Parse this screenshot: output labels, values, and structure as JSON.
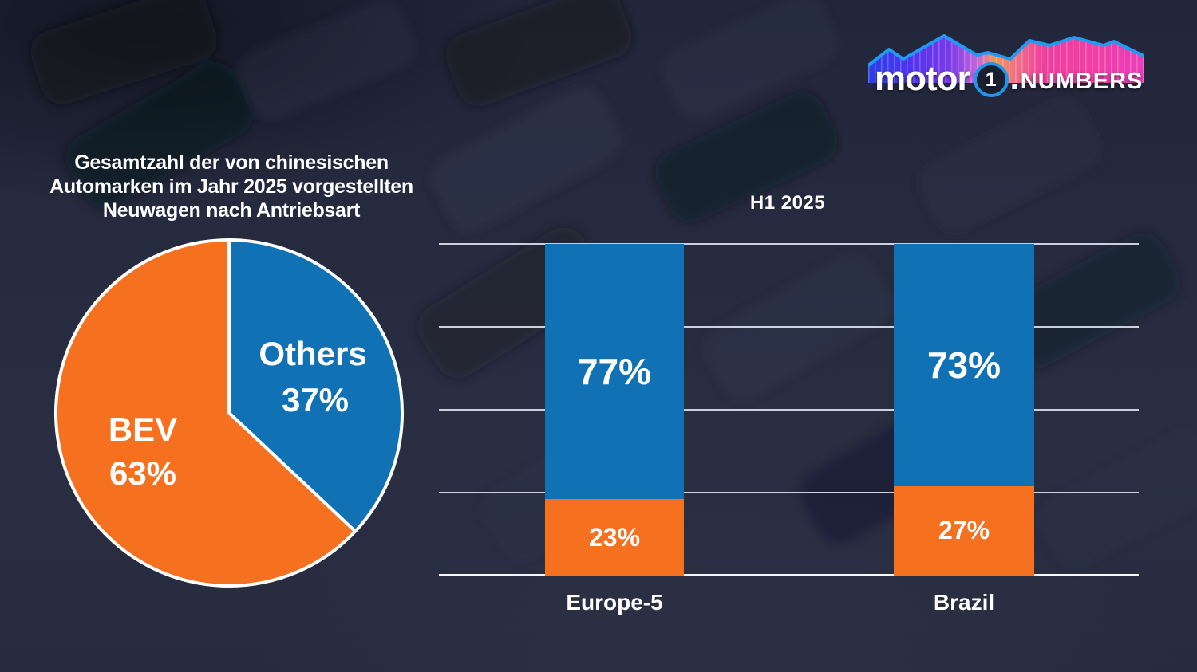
{
  "logo": {
    "motor": "motor",
    "one": "1",
    "dot": ".",
    "numbers": "NUMBERS"
  },
  "pie_section": {
    "title_lines": [
      "Gesamtzahl der von chinesischen",
      "Automarken im Jahr 2025 vorgestellten",
      "Neuwagen nach Antriebsart"
    ]
  },
  "bar_section": {
    "title": "H1 2025"
  },
  "colors": {
    "bev_orange": "#f5701f",
    "others_blue": "#1171b5",
    "background_navy": "#272b3d",
    "grid_white": "#f5f7fb"
  },
  "chart_data": [
    {
      "type": "pie",
      "title": "Gesamtzahl der von chinesischen Automarken im Jahr 2025 vorgestellten Neuwagen nach Antriebsart",
      "start_angle": "top",
      "direction": "clockwise",
      "slices": [
        {
          "label": "Others",
          "value": 37,
          "display": "37%",
          "color": "#1171b5"
        },
        {
          "label": "BEV",
          "value": 63,
          "display": "63%",
          "color": "#f5701f"
        }
      ]
    },
    {
      "type": "bar",
      "subtype": "stacked-100",
      "title": "H1 2025",
      "categories": [
        "Europe-5",
        "Brazil"
      ],
      "series": [
        {
          "name": "Others",
          "color": "#1171b5",
          "values": [
            77,
            73
          ],
          "display": [
            "77%",
            "73%"
          ]
        },
        {
          "name": "BEV",
          "color": "#f5701f",
          "values": [
            23,
            27
          ],
          "display": [
            "23%",
            "27%"
          ]
        }
      ],
      "ylim": [
        0,
        100
      ],
      "gridlines_pct": [
        0,
        25,
        50,
        75,
        100
      ],
      "legend": "none"
    }
  ]
}
